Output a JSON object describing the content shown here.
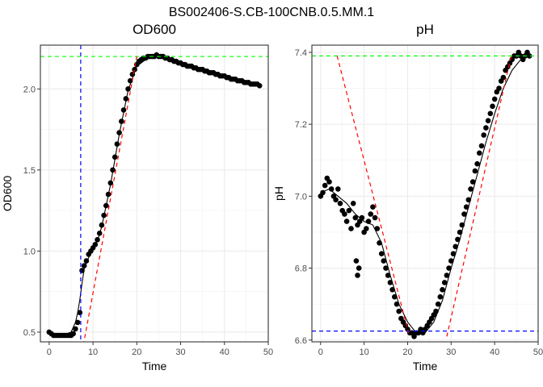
{
  "figure_title": "BS002406-S.CB-100CNB.0.5.MM.1",
  "chart_data": [
    {
      "type": "scatter",
      "title": "OD600",
      "xlabel": "Time",
      "ylabel": "OD600",
      "xlim": [
        -2,
        50
      ],
      "ylim": [
        0.44,
        2.27
      ],
      "xticks": [
        0,
        10,
        20,
        30,
        40,
        50
      ],
      "yticks": [
        0.5,
        1.0,
        1.5,
        2.0
      ],
      "ytick_labels": [
        "0.5",
        "1.0",
        "1.5",
        "2.0"
      ],
      "grid": true,
      "series": [
        {
          "role": "points",
          "x": [
            0,
            0.5,
            1,
            1.5,
            2,
            2.5,
            3,
            3.5,
            4,
            4.5,
            5,
            5.5,
            6,
            6.5,
            7,
            7.5,
            8,
            8.5,
            9,
            9.5,
            10,
            10.5,
            11,
            11.5,
            12,
            12.5,
            13,
            13.5,
            14,
            14.5,
            15,
            15.5,
            16,
            16.5,
            17,
            17.5,
            18,
            18.5,
            19,
            19.5,
            20,
            20.5,
            21,
            21.5,
            22,
            22.5,
            23,
            23.5,
            24,
            24.5,
            25,
            25.5,
            26,
            26.5,
            27,
            27.5,
            28,
            28.5,
            29,
            29.5,
            30,
            30.5,
            31,
            31.5,
            32,
            32.5,
            33,
            33.5,
            34,
            34.5,
            35,
            35.5,
            36,
            36.5,
            37,
            37.5,
            38,
            38.5,
            39,
            39.5,
            40,
            40.5,
            41,
            41.5,
            42,
            42.5,
            43,
            43.5,
            44,
            44.5,
            45,
            45.5,
            46,
            46.5,
            47,
            47.5,
            48
          ],
          "y": [
            0.5,
            0.49,
            0.48,
            0.48,
            0.48,
            0.48,
            0.48,
            0.48,
            0.48,
            0.48,
            0.48,
            0.49,
            0.52,
            0.56,
            0.62,
            0.88,
            0.91,
            0.94,
            0.98,
            1.0,
            1.02,
            1.04,
            1.07,
            1.11,
            1.16,
            1.22,
            1.28,
            1.35,
            1.42,
            1.5,
            1.58,
            1.66,
            1.73,
            1.8,
            1.87,
            1.94,
            2.0,
            2.05,
            2.09,
            2.12,
            2.15,
            2.17,
            2.18,
            2.19,
            2.19,
            2.2,
            2.2,
            2.2,
            2.2,
            2.21,
            2.2,
            2.2,
            2.2,
            2.19,
            2.19,
            2.18,
            2.18,
            2.17,
            2.17,
            2.16,
            2.16,
            2.15,
            2.15,
            2.14,
            2.14,
            2.14,
            2.13,
            2.13,
            2.12,
            2.12,
            2.12,
            2.11,
            2.11,
            2.1,
            2.1,
            2.1,
            2.09,
            2.09,
            2.08,
            2.08,
            2.08,
            2.07,
            2.07,
            2.06,
            2.06,
            2.06,
            2.05,
            2.05,
            2.05,
            2.04,
            2.04,
            2.04,
            2.03,
            2.03,
            2.03,
            2.03,
            2.02
          ]
        },
        {
          "role": "fit",
          "color": "#000000",
          "x": [
            0,
            2,
            4,
            5,
            6,
            6.5,
            7,
            7.5,
            8,
            9,
            10,
            11,
            12,
            14,
            16,
            18,
            20,
            22,
            24,
            26,
            28,
            30,
            34,
            38,
            42,
            46,
            48
          ],
          "y": [
            0.49,
            0.48,
            0.49,
            0.5,
            0.56,
            0.62,
            0.7,
            0.8,
            0.89,
            0.96,
            1.01,
            1.06,
            1.15,
            1.41,
            1.72,
            1.99,
            2.14,
            2.18,
            2.2,
            2.2,
            2.18,
            2.16,
            2.13,
            2.1,
            2.07,
            2.04,
            2.02
          ]
        }
      ],
      "reference_lines": [
        {
          "kind": "vertical",
          "x": 7.2,
          "color": "#0000ff",
          "style": "dashed"
        },
        {
          "kind": "horizontal",
          "y": 2.2,
          "color": "#00ff00",
          "style": "dashed"
        },
        {
          "kind": "tangent",
          "x": [
            7.8,
            20.0
          ],
          "y": [
            0.42,
            2.2
          ],
          "color": "#ff0000",
          "style": "dashed"
        }
      ]
    },
    {
      "type": "scatter",
      "title": "pH",
      "xlabel": "Time",
      "ylabel": "pH",
      "xlim": [
        -2,
        50
      ],
      "ylim": [
        6.595,
        7.42
      ],
      "xticks": [
        0,
        10,
        20,
        30,
        40,
        50
      ],
      "yticks": [
        6.6,
        6.8,
        7.0,
        7.2,
        7.4
      ],
      "ytick_labels": [
        "6.6",
        "6.8",
        "7.0",
        "7.2",
        "7.4"
      ],
      "grid": true,
      "series": [
        {
          "role": "points",
          "x": [
            0,
            0.5,
            1,
            1.5,
            2,
            2.5,
            3,
            3.5,
            4,
            4.5,
            5,
            5.5,
            6,
            6.5,
            7,
            7.5,
            8,
            8.5,
            9,
            9.5,
            10,
            10.5,
            11,
            11.5,
            12,
            12.5,
            13,
            13.5,
            14,
            14.5,
            15,
            15.5,
            16,
            16.5,
            17,
            17.5,
            18,
            18.5,
            19,
            19.5,
            20,
            20.5,
            21,
            21.5,
            22,
            22.5,
            23,
            23.5,
            24,
            24.5,
            25,
            25.5,
            26,
            26.5,
            27,
            27.5,
            28,
            28.5,
            29,
            29.5,
            30,
            30.5,
            31,
            31.5,
            32,
            32.5,
            33,
            33.5,
            34,
            34.5,
            35,
            35.5,
            36,
            36.5,
            37,
            37.5,
            38,
            38.5,
            39,
            39.5,
            40,
            40.5,
            41,
            41.5,
            42,
            42.5,
            43,
            43.5,
            44,
            44.5,
            45,
            45.5,
            46,
            46.5,
            47,
            47.5,
            48,
            8.2,
            8.5,
            8.8
          ],
          "y": [
            7.0,
            7.01,
            7.03,
            7.05,
            7.04,
            7.02,
            7.0,
            6.99,
            7.02,
            6.98,
            6.96,
            6.95,
            6.93,
            6.96,
            6.91,
            6.98,
            6.94,
            6.92,
            6.93,
            6.94,
            6.9,
            6.91,
            6.93,
            6.95,
            6.97,
            6.94,
            6.91,
            6.87,
            6.84,
            6.82,
            6.8,
            6.78,
            6.76,
            6.74,
            6.72,
            6.7,
            6.68,
            6.66,
            6.65,
            6.64,
            6.63,
            6.62,
            6.62,
            6.61,
            6.62,
            6.62,
            6.63,
            6.62,
            6.63,
            6.64,
            6.65,
            6.66,
            6.67,
            6.68,
            6.7,
            6.72,
            6.74,
            6.76,
            6.78,
            6.8,
            6.82,
            6.84,
            6.86,
            6.88,
            6.9,
            6.92,
            6.95,
            6.97,
            6.99,
            7.02,
            7.04,
            7.07,
            7.09,
            7.12,
            7.14,
            7.17,
            7.19,
            7.21,
            7.23,
            7.25,
            7.27,
            7.29,
            7.3,
            7.32,
            7.33,
            7.35,
            7.36,
            7.37,
            7.38,
            7.39,
            7.39,
            7.4,
            7.39,
            7.38,
            7.39,
            7.4,
            7.39,
            6.82,
            6.78,
            6.8
          ]
        },
        {
          "role": "fit",
          "color": "#000000",
          "x": [
            0,
            2,
            4,
            6,
            8,
            10,
            12,
            14,
            16,
            18,
            20,
            22,
            24,
            26,
            28,
            30,
            32,
            34,
            36,
            38,
            40,
            42,
            44,
            46,
            48
          ],
          "y": [
            7.01,
            7.02,
            7.0,
            6.98,
            6.95,
            6.93,
            6.92,
            6.87,
            6.78,
            6.7,
            6.65,
            6.62,
            6.62,
            6.65,
            6.71,
            6.8,
            6.88,
            6.97,
            7.06,
            7.15,
            7.23,
            7.3,
            7.35,
            7.38,
            7.39
          ]
        }
      ],
      "reference_lines": [
        {
          "kind": "horizontal",
          "y": 7.39,
          "color": "#00ff00",
          "style": "dashed"
        },
        {
          "kind": "horizontal",
          "y": 6.625,
          "color": "#0000ff",
          "style": "dashed"
        },
        {
          "kind": "tangent",
          "x": [
            3.8,
            20.2
          ],
          "y": [
            7.39,
            6.62
          ],
          "color": "#ff0000",
          "style": "dashed"
        },
        {
          "kind": "tangent",
          "x": [
            29.0,
            43.8
          ],
          "y": [
            6.61,
            7.39
          ],
          "color": "#ff0000",
          "style": "dashed"
        }
      ]
    }
  ]
}
